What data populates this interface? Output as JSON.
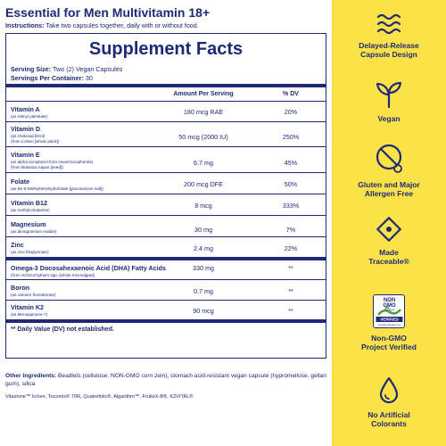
{
  "header": {
    "title": "Essential for Men Multivitamin 18+",
    "instructions_label": "Instructions:",
    "instructions_text": "Take two capsules together, daily with or without food."
  },
  "facts": {
    "title": "Supplement Facts",
    "serving_size_label": "Serving Size:",
    "serving_size_value": "Two (2) Vegan Capsules",
    "servings_label": "Servings Per Container:",
    "servings_value": "30",
    "col_amount": "Amount Per Serving",
    "col_dv": "% DV",
    "nutrients": [
      {
        "name": "Vitamin A",
        "sources": [
          "(as retinyl palmitate)"
        ],
        "amount": "180 mcg RAE",
        "dv": "20%"
      },
      {
        "name": "Vitamin D",
        "sources": [
          "(as cholecalciferol)",
          "(from Lichen [whole plant])"
        ],
        "amount": "50 mcg (2000 IU)",
        "dv": "250%"
      },
      {
        "name": "Vitamin E",
        "sources": [
          "(as alpha tocopherol from mixed tocopherols)",
          "(from Brassica napus [seed])"
        ],
        "amount": "6.7 mg",
        "dv": "45%"
      },
      {
        "name": "Folate",
        "sources": [
          "(as 6S-5-Methyltetrahydrofolate [glucosamine salt])"
        ],
        "amount": "200 mcg DFE",
        "dv": "50%"
      },
      {
        "name": "Vitamin B12",
        "sources": [
          "(as methylcobalamin)"
        ],
        "amount": "8 mcg",
        "dv": "333%"
      },
      {
        "name": "Magnesium",
        "sources": [
          "(as dimagnesium malate)"
        ],
        "amount": "30 mg",
        "dv": "7%"
      },
      {
        "name": "Zinc",
        "sources": [
          "(as zinc bisglycinate)"
        ],
        "amount": "2.4 mg",
        "dv": "22%"
      },
      {
        "name": "Omega-3 Docosahexaenoic Acid (DHA) Fatty Acids",
        "sources": [
          "(from Schizochytrium spp. [whole microalgae])"
        ],
        "amount": "330 mg",
        "dv": "**"
      },
      {
        "name": "Boron",
        "sources": [
          "(as calcium fructoborate)"
        ],
        "amount": "0.7 mg",
        "dv": "**"
      },
      {
        "name": "Vitamin K2",
        "sources": [
          "(as Menaquinone-7)"
        ],
        "amount": "90 mcg",
        "dv": "**"
      }
    ],
    "footnote": "** Daily Value (DV) not established."
  },
  "other_ingredients": {
    "label": "Other Ingredients:",
    "text": "Beadlets (cellulose, NON-GMO corn zein), stomach acid-resistant vegan capsule (hypromellose, gellan gum), silica"
  },
  "trademarks": "Vitashine™ lichen, Tocomix® 70R, Quatrefolic®, Algarithm™, FruiteX-B®, K2VITAL®",
  "features": [
    {
      "icon": "wave-lines-icon",
      "line1": "Delayed-Release",
      "line2": "Capsule Design"
    },
    {
      "icon": "sprout-icon",
      "line1": "Vegan",
      "line2": ""
    },
    {
      "icon": "gluten-free-icon",
      "line1": "Gluten and Major",
      "line2": "Allergen Free"
    },
    {
      "icon": "traceable-icon",
      "line1": "Made",
      "line2": "Traceable®"
    },
    {
      "icon": "non-gmo-icon",
      "line1": "Non-GMO",
      "line2": "Project Verified",
      "badge_top": "NON",
      "badge_mid": "GMO",
      "badge_sub": "Project",
      "badge_verified": "VERIFIED",
      "badge_url": "nongmoproject.org"
    },
    {
      "icon": "droplet-icon",
      "line1": "No Artificial",
      "line2": "Colorants"
    }
  ],
  "colors": {
    "navy": "#1e2a78",
    "yellow": "#fbe347",
    "green": "#4a9a3c"
  }
}
